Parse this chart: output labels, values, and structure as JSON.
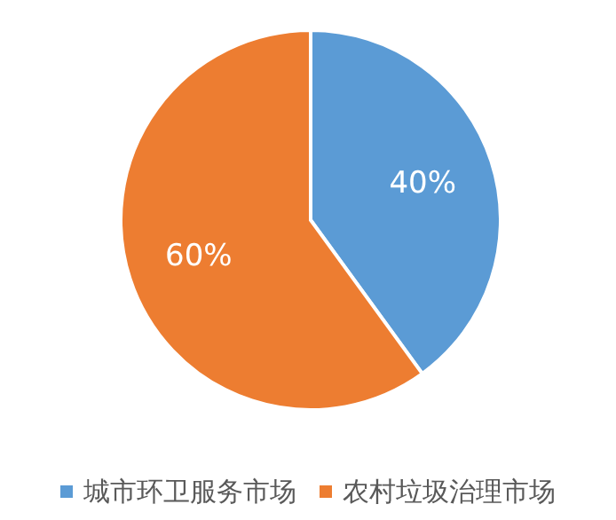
{
  "chart_data": {
    "type": "pie",
    "categories": [
      "城市环卫服务市场",
      "农村垃圾治理市场"
    ],
    "values": [
      40,
      60
    ],
    "colors": [
      "#5b9bd5",
      "#ed7d31"
    ],
    "value_labels": [
      "40%",
      "60%"
    ],
    "legend": "bottom"
  }
}
